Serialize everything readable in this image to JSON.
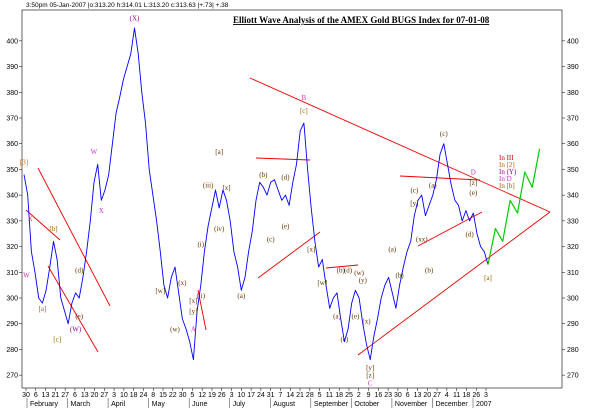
{
  "header": {
    "info": "3:50pm 05-Jan-2007 |o:313.20 h:314.01 L:313.20 c:313.63 |+.73| +.38"
  },
  "chart_data": {
    "type": "line",
    "title": "Elliott Wave Analysis of the AMEX Gold BUGS Index for 07-01-08",
    "ylim": [
      265,
      412
    ],
    "y_ticks": [
      270,
      280,
      290,
      300,
      310,
      320,
      330,
      340,
      350,
      360,
      370,
      380,
      390,
      400
    ],
    "y_tick_labels_left": [
      "270",
      "280",
      "290",
      "300",
      "310",
      "320",
      "330",
      "340",
      "350",
      "360",
      "370",
      "380",
      "390",
      "400"
    ],
    "y_tick_labels_right": [
      "270",
      "280",
      "290",
      "300",
      "310",
      "320",
      "330",
      "340",
      "350",
      "360",
      "370",
      "380",
      "390",
      "400"
    ],
    "x_day_ticks": [
      "30",
      "6",
      "13",
      "21",
      "27",
      "6",
      "13",
      "20",
      "27",
      "3",
      "10",
      "18",
      "24",
      "8",
      "15",
      "22",
      "30",
      "5",
      "12",
      "19",
      "26",
      "3",
      "10",
      "17",
      "24",
      "31",
      "7",
      "14",
      "21",
      "28",
      "5",
      "11",
      "18",
      "25",
      "2",
      "9",
      "16",
      "23",
      "30",
      "6",
      "13",
      "20",
      "27",
      "4",
      "11",
      "18",
      "26",
      "3"
    ],
    "x_month_labels": [
      "February",
      "March",
      "April",
      "May",
      "June",
      "July",
      "August",
      "September",
      "October",
      "November",
      "December",
      "2007"
    ],
    "price_series": {
      "name": "",
      "color": "#0000ff",
      "points": [
        [
          0,
          348
        ],
        [
          3,
          340
        ],
        [
          6,
          318
        ],
        [
          9,
          310
        ],
        [
          12,
          300
        ],
        [
          15,
          298
        ],
        [
          18,
          303
        ],
        [
          21,
          312
        ],
        [
          24,
          322
        ],
        [
          27,
          315
        ],
        [
          30,
          300
        ],
        [
          33,
          295
        ],
        [
          36,
          290
        ],
        [
          39,
          298
        ],
        [
          42,
          302
        ],
        [
          45,
          300
        ],
        [
          48,
          308
        ],
        [
          51,
          318
        ],
        [
          54,
          330
        ],
        [
          57,
          345
        ],
        [
          60,
          352
        ],
        [
          63,
          338
        ],
        [
          66,
          342
        ],
        [
          69,
          348
        ],
        [
          72,
          360
        ],
        [
          75,
          372
        ],
        [
          78,
          378
        ],
        [
          81,
          385
        ],
        [
          84,
          390
        ],
        [
          87,
          395
        ],
        [
          90,
          405
        ],
        [
          93,
          395
        ],
        [
          96,
          380
        ],
        [
          99,
          368
        ],
        [
          102,
          350
        ],
        [
          105,
          340
        ],
        [
          108,
          330
        ],
        [
          111,
          318
        ],
        [
          114,
          305
        ],
        [
          117,
          300
        ],
        [
          120,
          308
        ],
        [
          123,
          312
        ],
        [
          126,
          302
        ],
        [
          129,
          292
        ],
        [
          132,
          288
        ],
        [
          135,
          283
        ],
        [
          138,
          276
        ],
        [
          141,
          295
        ],
        [
          144,
          305
        ],
        [
          147,
          318
        ],
        [
          150,
          328
        ],
        [
          153,
          335
        ],
        [
          156,
          342
        ],
        [
          159,
          335
        ],
        [
          162,
          342
        ],
        [
          165,
          338
        ],
        [
          168,
          330
        ],
        [
          171,
          318
        ],
        [
          174,
          312
        ],
        [
          177,
          303
        ],
        [
          180,
          308
        ],
        [
          183,
          318
        ],
        [
          186,
          326
        ],
        [
          189,
          338
        ],
        [
          192,
          345
        ],
        [
          195,
          343
        ],
        [
          198,
          340
        ],
        [
          201,
          345
        ],
        [
          204,
          346
        ],
        [
          207,
          342
        ],
        [
          210,
          338
        ],
        [
          213,
          340
        ],
        [
          216,
          336
        ],
        [
          219,
          345
        ],
        [
          222,
          352
        ],
        [
          225,
          365
        ],
        [
          228,
          368
        ],
        [
          231,
          350
        ],
        [
          234,
          335
        ],
        [
          237,
          322
        ],
        [
          240,
          312
        ],
        [
          243,
          315
        ],
        [
          246,
          305
        ],
        [
          249,
          296
        ],
        [
          252,
          300
        ],
        [
          255,
          302
        ],
        [
          258,
          292
        ],
        [
          261,
          283
        ],
        [
          264,
          288
        ],
        [
          267,
          298
        ],
        [
          270,
          303
        ],
        [
          273,
          300
        ],
        [
          276,
          290
        ],
        [
          279,
          282
        ],
        [
          282,
          276
        ],
        [
          285,
          285
        ],
        [
          288,
          292
        ],
        [
          291,
          300
        ],
        [
          294,
          305
        ],
        [
          297,
          308
        ],
        [
          300,
          302
        ],
        [
          303,
          296
        ],
        [
          306,
          305
        ],
        [
          309,
          312
        ],
        [
          312,
          318
        ],
        [
          315,
          322
        ],
        [
          318,
          332
        ],
        [
          321,
          338
        ],
        [
          324,
          340
        ],
        [
          327,
          332
        ],
        [
          330,
          336
        ],
        [
          333,
          340
        ],
        [
          336,
          346
        ],
        [
          339,
          356
        ],
        [
          342,
          360
        ],
        [
          345,
          352
        ],
        [
          348,
          344
        ],
        [
          351,
          338
        ],
        [
          354,
          336
        ],
        [
          357,
          330
        ],
        [
          360,
          334
        ],
        [
          363,
          330
        ],
        [
          366,
          333
        ],
        [
          369,
          325
        ],
        [
          372,
          320
        ],
        [
          375,
          318
        ],
        [
          378,
          313
        ]
      ]
    },
    "projection_series": {
      "name": "",
      "color": "#00cc00",
      "points": [
        [
          378,
          313
        ],
        [
          384,
          327
        ],
        [
          390,
          322
        ],
        [
          396,
          338
        ],
        [
          402,
          333
        ],
        [
          408,
          349
        ],
        [
          414,
          343
        ],
        [
          420,
          358
        ]
      ]
    },
    "labels": [
      {
        "text": "[3]",
        "x": 0,
        "y": 352,
        "color": "#cc6600"
      },
      {
        "text": "X",
        "x": 5,
        "y": 330,
        "color": "#cc33cc"
      },
      {
        "text": "W",
        "x": 2,
        "y": 308,
        "color": "#cc33cc"
      },
      {
        "text": "[a]",
        "x": 15,
        "y": 295,
        "color": "#996600"
      },
      {
        "text": "[b]",
        "x": 24,
        "y": 326,
        "color": "#996600"
      },
      {
        "text": "[c]",
        "x": 27,
        "y": 283,
        "color": "#996600"
      },
      {
        "text": "(d)",
        "x": 45,
        "y": 310,
        "color": "#663300"
      },
      {
        "text": "(e)",
        "x": 45,
        "y": 292,
        "color": "#663300"
      },
      {
        "text": "(W)",
        "x": 42,
        "y": 287,
        "color": "#990099"
      },
      {
        "text": "W",
        "x": 57,
        "y": 356,
        "color": "#cc33cc"
      },
      {
        "text": "X",
        "x": 63,
        "y": 333,
        "color": "#cc33cc"
      },
      {
        "text": "(X)",
        "x": 90,
        "y": 408,
        "color": "#990099"
      },
      {
        "text": "[w]",
        "x": 111,
        "y": 302,
        "color": "#663300"
      },
      {
        "text": "(x)",
        "x": 129,
        "y": 305,
        "color": "#663300"
      },
      {
        "text": "(w)",
        "x": 123,
        "y": 287,
        "color": "#663300"
      },
      {
        "text": "[x]",
        "x": 138,
        "y": 298,
        "color": "#663300"
      },
      {
        "text": "[y]",
        "x": 138,
        "y": 294,
        "color": "#663300"
      },
      {
        "text": "A",
        "x": 138,
        "y": 287,
        "color": "#cc33cc"
      },
      {
        "text": "(i)",
        "x": 144,
        "y": 320,
        "color": "#663300"
      },
      {
        "text": "(ii)",
        "x": 144,
        "y": 300,
        "color": "#663300"
      },
      {
        "text": "(iii)",
        "x": 150,
        "y": 343,
        "color": "#663300"
      },
      {
        "text": "[x]",
        "x": 165,
        "y": 342,
        "color": "#663300"
      },
      {
        "text": "(iv)",
        "x": 159,
        "y": 326,
        "color": "#663300"
      },
      {
        "text": "[a]",
        "x": 159,
        "y": 356,
        "color": "#663300"
      },
      {
        "text": "(a)",
        "x": 177,
        "y": 300,
        "color": "#663300"
      },
      {
        "text": "(b)",
        "x": 195,
        "y": 347,
        "color": "#663300"
      },
      {
        "text": "(c)",
        "x": 201,
        "y": 322,
        "color": "#663300"
      },
      {
        "text": "(d)",
        "x": 213,
        "y": 346,
        "color": "#663300"
      },
      {
        "text": "(e)",
        "x": 213,
        "y": 327,
        "color": "#663300"
      },
      {
        "text": "B",
        "x": 228,
        "y": 377,
        "color": "#cc33cc"
      },
      {
        "text": "[c]",
        "x": 228,
        "y": 372,
        "color": "#996600"
      },
      {
        "text": "[x]",
        "x": 234,
        "y": 318,
        "color": "#663300"
      },
      {
        "text": "[w]",
        "x": 243,
        "y": 305,
        "color": "#663300"
      },
      {
        "text": "(a)",
        "x": 255,
        "y": 292,
        "color": "#663300"
      },
      {
        "text": "(b)",
        "x": 258,
        "y": 310,
        "color": "#663300"
      },
      {
        "text": "(d)",
        "x": 264,
        "y": 310,
        "color": "#663300"
      },
      {
        "text": "(c)",
        "x": 261,
        "y": 283,
        "color": "#663300"
      },
      {
        "text": "(e)",
        "x": 270,
        "y": 292,
        "color": "#663300"
      },
      {
        "text": "(w)",
        "x": 273,
        "y": 309,
        "color": "#663300"
      },
      {
        "text": "(y)",
        "x": 276,
        "y": 306,
        "color": "#663300"
      },
      {
        "text": "(x)",
        "x": 279,
        "y": 290,
        "color": "#663300"
      },
      {
        "text": "[y]",
        "x": 282,
        "y": 272,
        "color": "#663300"
      },
      {
        "text": "[z]",
        "x": 282,
        "y": 269,
        "color": "#663300"
      },
      {
        "text": "C",
        "x": 282,
        "y": 266,
        "color": "#cc33cc"
      },
      {
        "text": "(a)",
        "x": 300,
        "y": 318,
        "color": "#663300"
      },
      {
        "text": "(b)",
        "x": 306,
        "y": 308,
        "color": "#663300"
      },
      {
        "text": "(c)",
        "x": 318,
        "y": 341,
        "color": "#663300"
      },
      {
        "text": "[y]",
        "x": 318,
        "y": 336,
        "color": "#663300"
      },
      {
        "text": "(xx)",
        "x": 324,
        "y": 322,
        "color": "#663300"
      },
      {
        "text": "(a)",
        "x": 333,
        "y": 343,
        "color": "#663300"
      },
      {
        "text": "(b)",
        "x": 330,
        "y": 310,
        "color": "#663300"
      },
      {
        "text": "(c)",
        "x": 342,
        "y": 363,
        "color": "#663300"
      },
      {
        "text": "(d)",
        "x": 363,
        "y": 324,
        "color": "#663300"
      },
      {
        "text": "D",
        "x": 366,
        "y": 348,
        "color": "#cc33cc"
      },
      {
        "text": "[z]",
        "x": 366,
        "y": 344,
        "color": "#663300"
      },
      {
        "text": "(e)",
        "x": 366,
        "y": 340,
        "color": "#663300"
      },
      {
        "text": "[a]",
        "x": 378,
        "y": 307,
        "color": "#996600"
      }
    ],
    "projection_labels": [
      {
        "text": "In III",
        "color": "#cc0000"
      },
      {
        "text": "In [2]",
        "color": "#cc6600"
      },
      {
        "text": "In (Y)",
        "color": "#990099"
      },
      {
        "text": "In D",
        "color": "#cc33cc"
      },
      {
        "text": "In [b]",
        "color": "#996600"
      }
    ]
  }
}
